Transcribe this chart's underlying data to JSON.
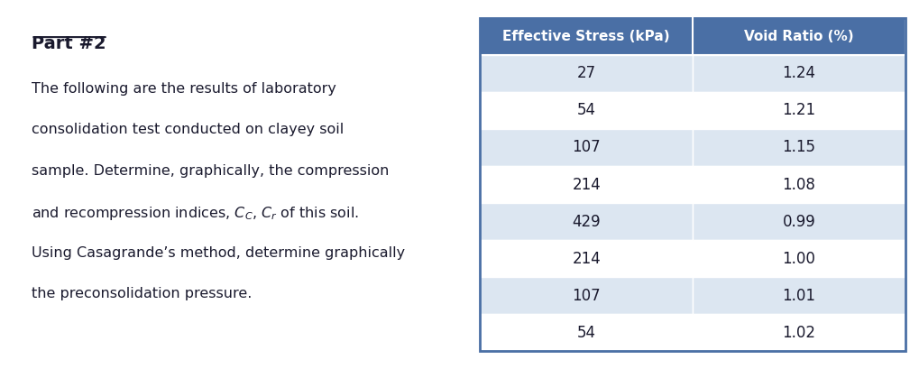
{
  "title": "Part #2",
  "col1_header": "Effective Stress (kPa)",
  "col2_header": "Void Ratio (%)",
  "col1_data": [
    27,
    54,
    107,
    214,
    429,
    214,
    107,
    54
  ],
  "col2_data": [
    1.24,
    1.21,
    1.15,
    1.08,
    0.99,
    1.0,
    1.01,
    1.02
  ],
  "header_bg": "#4a6fa5",
  "header_text_color": "#ffffff",
  "row_bg_light": "#dce6f1",
  "row_bg_white": "#ffffff",
  "border_color": "#ffffff",
  "table_outline": "#4a6fa5",
  "text_color": "#1a1a2e",
  "bg_color": "#ffffff",
  "lines": [
    "The following are the results of laboratory",
    "consolidation test conducted on clayey soil",
    "sample. Determine, graphically, the compression",
    "and recompression indices, $C_C$, $C_r$ of this soil.",
    "Using Casagrande’s method, determine graphically",
    "the preconsolidation pressure."
  ]
}
